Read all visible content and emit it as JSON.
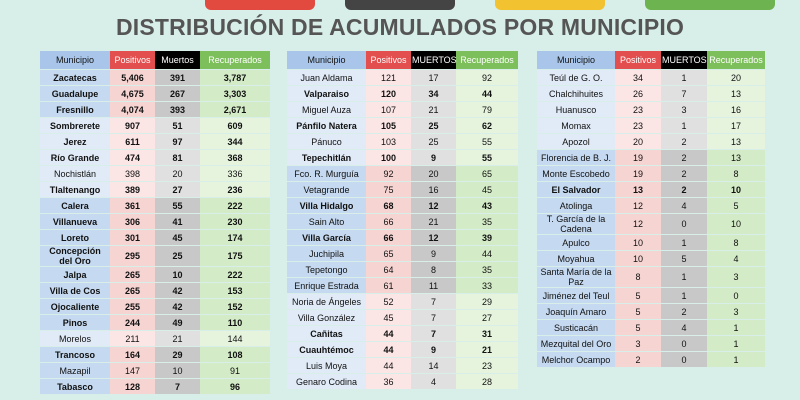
{
  "title": "DISTRIBUCIÓN DE ACUMULADOS POR MUNICIPIO",
  "tables": [
    {
      "header": [
        "Municipio",
        "Positivos",
        "Muertos",
        "Recuperados"
      ],
      "rows": [
        [
          "Zacatecas",
          "5,406",
          "391",
          "3,787"
        ],
        [
          "Guadalupe",
          "4,675",
          "267",
          "3,303"
        ],
        [
          "Fresnillo",
          "4,074",
          "393",
          "2,671"
        ],
        [
          "Sombrerete",
          "907",
          "51",
          "609"
        ],
        [
          "Jerez",
          "611",
          "97",
          "344"
        ],
        [
          "Río Grande",
          "474",
          "81",
          "368"
        ],
        [
          "Nochistlán",
          "398",
          "20",
          "336"
        ],
        [
          "Tlaltenango",
          "389",
          "27",
          "236"
        ],
        [
          "Calera",
          "361",
          "55",
          "222"
        ],
        [
          "Villanueva",
          "306",
          "41",
          "230"
        ],
        [
          "Loreto",
          "301",
          "45",
          "174"
        ],
        [
          "Concepción del Oro",
          "295",
          "25",
          "175"
        ],
        [
          "Jalpa",
          "265",
          "10",
          "222"
        ],
        [
          "Villa de Cos",
          "265",
          "42",
          "153"
        ],
        [
          "Ojocaliente",
          "255",
          "42",
          "152"
        ],
        [
          "Pinos",
          "244",
          "49",
          "110"
        ],
        [
          "Morelos",
          "211",
          "21",
          "144"
        ],
        [
          "Trancoso",
          "164",
          "29",
          "108"
        ],
        [
          "Mazapil",
          "147",
          "10",
          "91"
        ],
        [
          "Tabasco",
          "128",
          "7",
          "96"
        ]
      ]
    },
    {
      "header": [
        "Municipio",
        "Positivos",
        "MUERTOS",
        "Recuperados"
      ],
      "rows": [
        [
          "Juan Aldama",
          "121",
          "17",
          "92"
        ],
        [
          "Valparaiso",
          "120",
          "34",
          "44"
        ],
        [
          "Miguel Auza",
          "107",
          "21",
          "79"
        ],
        [
          "Pánfilo Natera",
          "105",
          "25",
          "62"
        ],
        [
          "Pánuco",
          "103",
          "25",
          "55"
        ],
        [
          "Tepechitlán",
          "100",
          "9",
          "55"
        ],
        [
          "Fco. R. Murguía",
          "92",
          "20",
          "65"
        ],
        [
          "Vetagrande",
          "75",
          "16",
          "45"
        ],
        [
          "Villa Hidalgo",
          "68",
          "12",
          "43"
        ],
        [
          "Sain Alto",
          "66",
          "21",
          "35"
        ],
        [
          "Villa García",
          "66",
          "12",
          "39"
        ],
        [
          "Juchipila",
          "65",
          "9",
          "44"
        ],
        [
          "Tepetongo",
          "64",
          "8",
          "35"
        ],
        [
          "Enrique Estrada",
          "61",
          "11",
          "33"
        ],
        [
          "Noria de Ángeles",
          "52",
          "7",
          "29"
        ],
        [
          "Villa González",
          "45",
          "7",
          "27"
        ],
        [
          "Cañitas",
          "44",
          "7",
          "31"
        ],
        [
          "Cuauhtémoc",
          "44",
          "9",
          "21"
        ],
        [
          "Luis Moya",
          "44",
          "14",
          "23"
        ],
        [
          "Genaro Codina",
          "36",
          "4",
          "28"
        ]
      ]
    },
    {
      "header": [
        "Municipio",
        "Positivos",
        "MUERTOS",
        "Recuperados"
      ],
      "rows": [
        [
          "Teúl de G. O.",
          "34",
          "1",
          "20"
        ],
        [
          "Chalchihuites",
          "26",
          "7",
          "13"
        ],
        [
          "Huanusco",
          "23",
          "3",
          "16"
        ],
        [
          "Momax",
          "23",
          "1",
          "17"
        ],
        [
          "Apozol",
          "20",
          "2",
          "13"
        ],
        [
          "Florencia de B. J.",
          "19",
          "2",
          "13"
        ],
        [
          "Monte Escobedo",
          "19",
          "2",
          "8"
        ],
        [
          "El Salvador",
          "13",
          "2",
          "10"
        ],
        [
          "Atolinga",
          "12",
          "4",
          "5"
        ],
        [
          "T. García de la Cadena",
          "12",
          "0",
          "10"
        ],
        [
          "Apulco",
          "10",
          "1",
          "8"
        ],
        [
          "Moyahua",
          "10",
          "5",
          "4"
        ],
        [
          "Santa María de la Paz",
          "8",
          "1",
          "3"
        ],
        [
          "Jiménez del Teul",
          "5",
          "1",
          "0"
        ],
        [
          "Joaquín Amaro",
          "5",
          "2",
          "3"
        ],
        [
          "Susticacán",
          "5",
          "4",
          "1"
        ],
        [
          "Mezquital del Oro",
          "3",
          "0",
          "1"
        ],
        [
          "Melchor Ocampo",
          "2",
          "0",
          "1"
        ]
      ]
    }
  ]
}
